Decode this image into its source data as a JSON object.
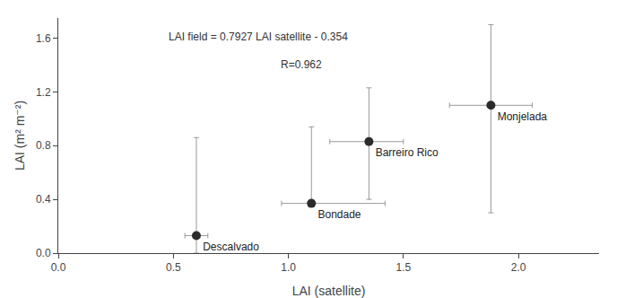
{
  "chart_data": {
    "type": "scatter",
    "xlabel": "LAI (satellite)",
    "ylabel": "LAI (m² m⁻²)",
    "x": [
      0.6,
      1.1,
      1.35,
      1.88
    ],
    "values": [
      0.13,
      0.37,
      0.83,
      1.1
    ],
    "point_labels": [
      "Descalvado",
      "Bondade",
      "Barreiro Rico",
      "Monjelada"
    ],
    "xerr_low": [
      0.05,
      0.13,
      0.17,
      0.18
    ],
    "xerr_high": [
      0.05,
      0.32,
      0.15,
      0.18
    ],
    "yerr_low": [
      0.13,
      0.0,
      0.43,
      0.8
    ],
    "yerr_high": [
      0.73,
      0.57,
      0.4,
      0.6
    ],
    "color": "#2b2b2b",
    "error_color": "#999999",
    "xlim": [
      0,
      2.35
    ],
    "ylim": [
      0,
      1.75
    ],
    "xticks": [
      {
        "value": 0,
        "label": "0.0"
      },
      0.5,
      {
        "value": 1.0,
        "label": "1.0"
      },
      1.5,
      {
        "value": 2.0,
        "label": "2.0"
      }
    ],
    "yticks": [
      {
        "value": 0,
        "label": "0.0"
      },
      0.4,
      0.8,
      1.2,
      1.6
    ],
    "annotations": [
      "LAI field = 0.7927 LAI satellite - 0.354",
      "R=0.962"
    ],
    "grid": false
  }
}
